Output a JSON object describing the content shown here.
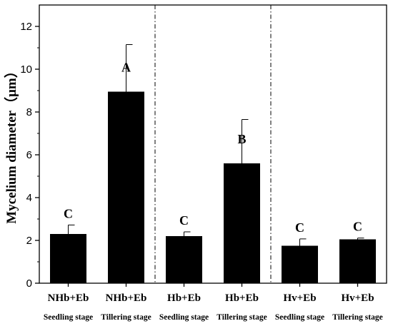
{
  "chart_data": {
    "type": "bar",
    "title": "",
    "ylabel": "Mycelium diameter（μm）",
    "xlabel": "",
    "ylim": [
      0,
      13
    ],
    "yticks": [
      0,
      2,
      4,
      6,
      8,
      10,
      12
    ],
    "grid": false,
    "legend": "none",
    "bar_color": "#000000",
    "categories": [
      {
        "label": "NHb+Eb",
        "stage": "Seedling stage"
      },
      {
        "label": "NHb+Eb",
        "stage": "Tillering stage"
      },
      {
        "label": "Hb+Eb",
        "stage": "Seedling stage"
      },
      {
        "label": "Hb+Eb",
        "stage": "Tillering stage"
      },
      {
        "label": "Hv+Eb",
        "stage": "Seedling stage"
      },
      {
        "label": "Hv+Eb",
        "stage": "Tillering stage"
      }
    ],
    "values": [
      2.3,
      8.95,
      2.2,
      5.6,
      1.75,
      2.05
    ],
    "errors": [
      0.42,
      2.2,
      0.2,
      2.05,
      0.32,
      0.06
    ],
    "significance": [
      "C",
      "A",
      "C",
      "B",
      "C",
      "C"
    ],
    "group_separators_after": [
      2,
      4
    ]
  }
}
